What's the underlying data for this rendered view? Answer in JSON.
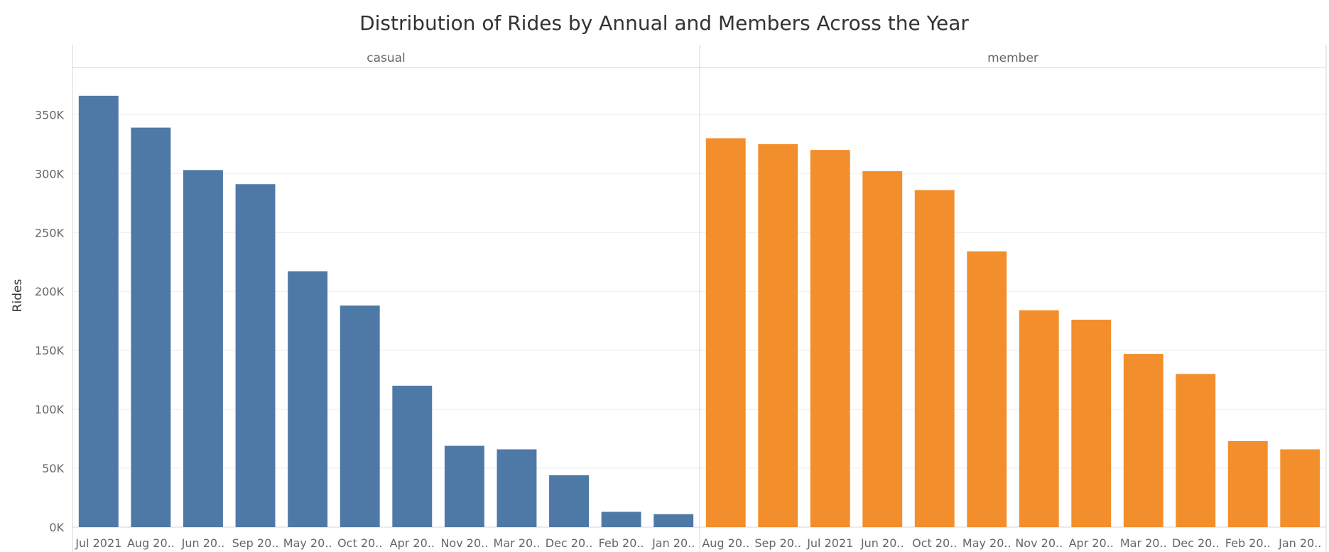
{
  "chart_data": {
    "type": "bar",
    "title": "Distribution of Rides by Annual and Members Across the Year",
    "ylabel": "Rides",
    "xlabel": "",
    "ylim": [
      0,
      390000
    ],
    "yticks": [
      0,
      50000,
      100000,
      150000,
      200000,
      250000,
      300000,
      350000
    ],
    "ytick_labels": [
      "0K",
      "50K",
      "100K",
      "150K",
      "200K",
      "250K",
      "300K",
      "350K"
    ],
    "grid": true,
    "panels": [
      {
        "name": "casual",
        "color": "#4e79a7",
        "categories": [
          "Jul 2021",
          "Aug 20..",
          "Jun 20..",
          "Sep 20..",
          "May 20..",
          "Oct 20..",
          "Apr 20..",
          "Nov 20..",
          "Mar 20..",
          "Dec 20..",
          "Feb 20..",
          "Jan 20.."
        ],
        "values": [
          366000,
          339000,
          303000,
          291000,
          217000,
          188000,
          120000,
          69000,
          66000,
          44000,
          13000,
          11000
        ]
      },
      {
        "name": "member",
        "color": "#f28e2b",
        "categories": [
          "Aug 20..",
          "Sep 20..",
          "Jul 2021",
          "Jun 20..",
          "Oct 20..",
          "May 20..",
          "Nov 20..",
          "Apr 20..",
          "Mar 20..",
          "Dec 20..",
          "Feb 20..",
          "Jan 20.."
        ],
        "values": [
          330000,
          325000,
          320000,
          302000,
          286000,
          234000,
          184000,
          176000,
          147000,
          130000,
          73000,
          66000
        ]
      }
    ]
  }
}
